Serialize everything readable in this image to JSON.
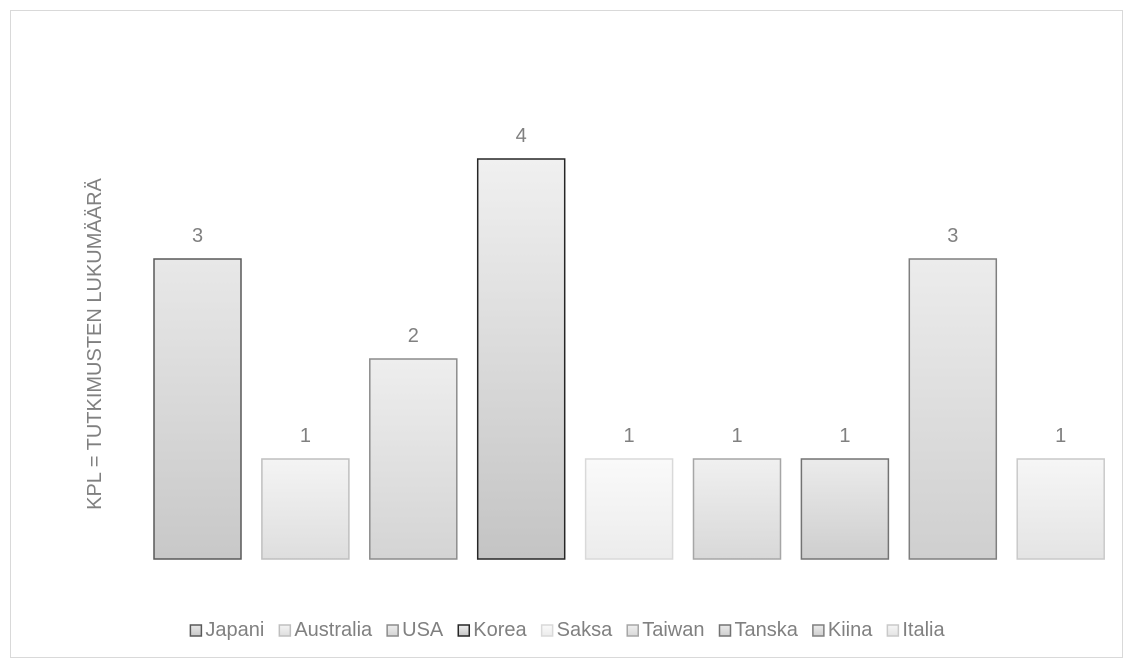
{
  "chart_data": {
    "type": "bar",
    "title": "",
    "ylabel": "KPL = TUTKIMUSTEN LUKUMÄÄRÄ",
    "xlabel": "",
    "ylim": [
      0,
      4
    ],
    "grid": false,
    "legend_position": "bottom",
    "categories": [
      "Japani",
      "Australia",
      "USA",
      "Korea",
      "Saksa",
      "Taiwan",
      "Tanska",
      "Kiina",
      "Italia"
    ],
    "values": [
      3,
      1,
      2,
      4,
      1,
      1,
      1,
      3,
      1
    ],
    "colors": {
      "Japani": {
        "top": "#e8e8e8",
        "bottom": "#c8c8c8",
        "border": "#595959"
      },
      "Australia": {
        "top": "#f4f4f4",
        "bottom": "#dedede",
        "border": "#bfbfbf"
      },
      "USA": {
        "top": "#eeeeee",
        "bottom": "#d4d4d4",
        "border": "#8c8c8c"
      },
      "Korea": {
        "top": "#f0f0f0",
        "bottom": "#c4c4c4",
        "border": "#262626"
      },
      "Saksa": {
        "top": "#fafafa",
        "bottom": "#ececec",
        "border": "#d9d9d9"
      },
      "Taiwan": {
        "top": "#f0f0f0",
        "bottom": "#d8d8d8",
        "border": "#a6a6a6"
      },
      "Tanska": {
        "top": "#ebebeb",
        "bottom": "#cecece",
        "border": "#737373"
      },
      "Kiina": {
        "top": "#ececec",
        "bottom": "#cfcfcf",
        "border": "#7f7f7f"
      },
      "Italia": {
        "top": "#f6f6f6",
        "bottom": "#e4e4e4",
        "border": "#c9c9c9"
      }
    }
  }
}
